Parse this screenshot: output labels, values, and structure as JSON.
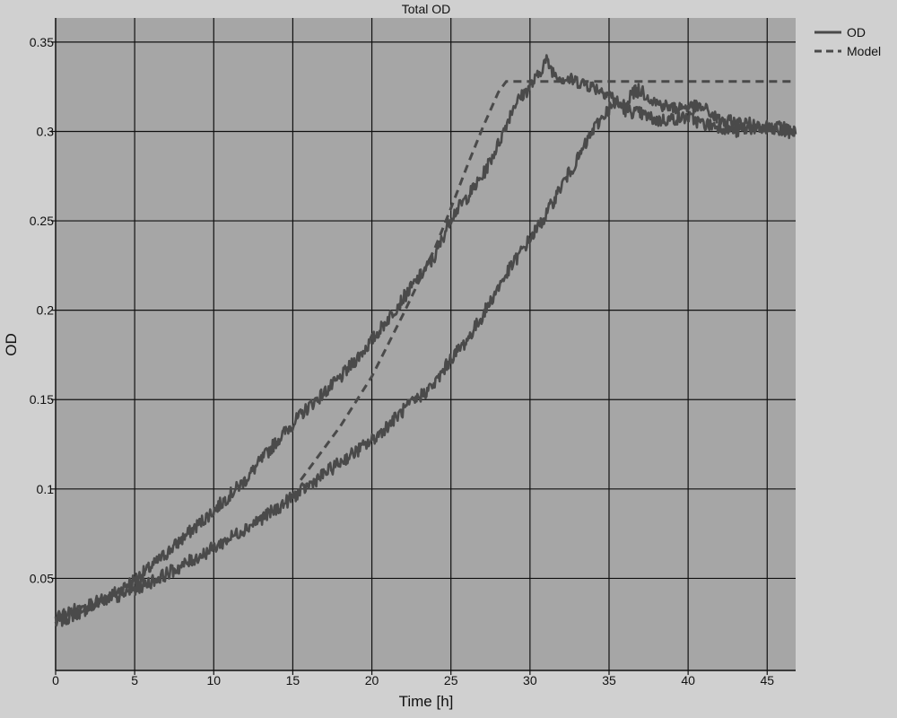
{
  "chart_data": {
    "type": "line",
    "title": "Total OD",
    "xlabel": "Time [h]",
    "ylabel": "OD",
    "xlim": [
      0,
      46.8
    ],
    "ylim": [
      -0.0015,
      0.3635
    ],
    "x_ticks": [
      0,
      5,
      10,
      15,
      20,
      25,
      30,
      35,
      40,
      45
    ],
    "y_ticks": [
      0.05,
      0.1,
      0.15,
      0.2,
      0.25,
      0.3,
      0.35
    ],
    "y_tick_labels": [
      "0.05",
      "0.1",
      "0.15",
      "0.2",
      "0.25",
      "0.3",
      "0.35"
    ],
    "grid": true,
    "legend_position": "top-right, outside plot",
    "colors": {
      "background": "#d0d0d0",
      "plot_area": "#a6a6a6",
      "grid": "#111111",
      "series": "#4a4a4a"
    },
    "series": [
      {
        "name": "OD",
        "style": "solid",
        "curves": [
          {
            "x": [
              0,
              2,
              4,
              6,
              8,
              10,
              12,
              14,
              16,
              18,
              20,
              22,
              24,
              25,
              26,
              27,
              28,
              29,
              30,
              30.5,
              31,
              31.5,
              32,
              33,
              34,
              35,
              36,
              37,
              38,
              39,
              40,
              41,
              42,
              43,
              44,
              45,
              46,
              46.8
            ],
            "y": [
              0.025,
              0.033,
              0.043,
              0.056,
              0.072,
              0.088,
              0.105,
              0.127,
              0.146,
              0.162,
              0.183,
              0.207,
              0.23,
              0.252,
              0.263,
              0.275,
              0.293,
              0.315,
              0.325,
              0.331,
              0.34,
              0.333,
              0.33,
              0.328,
              0.325,
              0.321,
              0.312,
              0.31,
              0.306,
              0.307,
              0.308,
              0.304,
              0.303,
              0.3,
              0.302,
              0.301,
              0.3,
              0.299
            ]
          },
          {
            "x": [
              0,
              2,
              4,
              6,
              8,
              10,
              12,
              14,
              16,
              18,
              20,
              22,
              24,
              25,
              26,
              27,
              28,
              29,
              30,
              31,
              32,
              33,
              34,
              35,
              36,
              36.5,
              37,
              38,
              39,
              40,
              41,
              42,
              43,
              44,
              45,
              46,
              46.8
            ],
            "y": [
              0.028,
              0.035,
              0.04,
              0.048,
              0.057,
              0.067,
              0.078,
              0.089,
              0.102,
              0.115,
              0.127,
              0.144,
              0.159,
              0.173,
              0.183,
              0.197,
              0.213,
              0.227,
              0.24,
              0.253,
              0.27,
              0.284,
              0.301,
              0.313,
              0.315,
              0.322,
              0.323,
              0.316,
              0.313,
              0.314,
              0.313,
              0.306,
              0.305,
              0.304,
              0.303,
              0.302,
              0.3
            ]
          }
        ]
      },
      {
        "name": "Model",
        "style": "dashed",
        "x": [
          15.5,
          16,
          18,
          20,
          22,
          24,
          25,
          26,
          27,
          28,
          28.5,
          30,
          35,
          40,
          46.8
        ],
        "y": [
          0.105,
          0.111,
          0.135,
          0.163,
          0.198,
          0.235,
          0.257,
          0.28,
          0.302,
          0.322,
          0.328,
          0.328,
          0.328,
          0.328,
          0.328
        ]
      }
    ]
  }
}
